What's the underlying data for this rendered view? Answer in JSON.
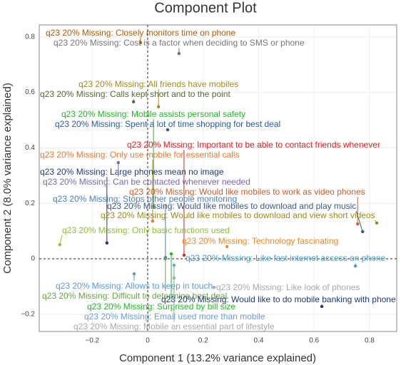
{
  "chart_data": {
    "type": "scatter",
    "title": "Component Plot",
    "x_label": "Component 1 (13.2% variance explained)",
    "y_label": "Component 2 (8.0% variance explained)",
    "xlim": [
      -0.391,
      0.898
    ],
    "ylim": [
      -0.262,
      0.843
    ],
    "xticks": [
      {
        "value": -0.2,
        "label": "−0.2"
      },
      0,
      0.2,
      0.4,
      0.6,
      0.8
    ],
    "yticks": [
      {
        "value": -0.2,
        "label": "−0.2"
      },
      0,
      0.2,
      0.4,
      0.6,
      0.8
    ],
    "grid": true,
    "series": [
      {
        "name": "q23 20% Missing: Closely monitors time on phone",
        "color": "#b35806",
        "x": [
          -0.026
        ],
        "values": [
          0.779
        ]
      },
      {
        "name": "q23 20% Missing: Cost is a factor when deciding to SMS or phone",
        "color": "#777777",
        "x": [
          0.113
        ],
        "values": [
          0.74
        ]
      },
      {
        "name": "q23 20% Missing: All friends have mobiles",
        "color": "#a08c1e",
        "x": [
          0.039
        ],
        "values": [
          0.548
        ]
      },
      {
        "name": "q23 20% Missing: Calls kept short and to the point",
        "color": "#556b2f",
        "x": [
          -0.051
        ],
        "values": [
          0.566
        ]
      },
      {
        "name": "q23 20% Missing: Mobile assists personal safety",
        "color": "#22b822",
        "x": [
          0.021
        ],
        "values": [
          0.188
        ]
      },
      {
        "name": "q23 20% Missing: Spent a lot of time shopping for best deal",
        "color": "#2a5a9a",
        "x": [
          0.072
        ],
        "values": [
          0.465
        ]
      },
      {
        "name": "q23 20% Missing: Important to be able to contact friends whenever",
        "color": "#e02020",
        "x": [
          0.131
        ],
        "values": [
          0.013
        ]
      },
      {
        "name": "q23 20% Missing: Only use mobile for essential calls",
        "color": "#e87a30",
        "x": [
          0.018
        ],
        "values": [
          0.136
        ]
      },
      {
        "name": "q23 20% Missing: Large phones mean no image",
        "color": "#1f3a78",
        "x": [
          -0.147
        ],
        "values": [
          0.057
        ]
      },
      {
        "name": "q23 20% Missing: Can be contacted whenever needed",
        "color": "#7b68ae",
        "x": [
          -0.106
        ],
        "values": [
          0.347
        ]
      },
      {
        "name": "q23 20% Missing: Would like mobiles to work as video phones",
        "color": "#c8602a",
        "x": [
          0.757
        ],
        "values": [
          0.126
        ]
      },
      {
        "name": "q23 20% Missing: Stops other people monitoring",
        "color": "#4a7fc1",
        "x": [
          0.064
        ],
        "values": [
          0.005
        ]
      },
      {
        "name": "q23 20% Missing: Would like mobiles to download and play music",
        "color": "#3a5a8a",
        "x": [
          0.775
        ],
        "values": [
          0.098
        ]
      },
      {
        "name": "q23 20% Missing: Would like mobiles to download and view short videos",
        "color": "#9b8a1a",
        "x": [
          0.826
        ],
        "values": [
          0.129
        ]
      },
      {
        "name": "q23 20% Missing: Only basic functions used",
        "color": "#8fbf3a",
        "x": [
          -0.317
        ],
        "values": [
          0.051
        ]
      },
      {
        "name": "q23 20% Missing: Technology fascinating",
        "color": "#e88a30",
        "x": [
          0.286
        ],
        "values": [
          0.044
        ]
      },
      {
        "name": "q23 20% Missing: Like fast internet access on phone",
        "color": "#4a9ac0",
        "x": [
          0.749
        ],
        "values": [
          -0.026
        ]
      },
      {
        "name": "q23 20% Missing: Allows to keep in touch",
        "color": "#5a9ad8",
        "x": [
          -0.049
        ],
        "values": [
          -0.054
        ]
      },
      {
        "name": "q23 20% Missing: Like look of phones",
        "color": "#aaaaaa",
        "x": [
          0.239
        ],
        "values": [
          -0.103
        ]
      },
      {
        "name": "q23 20% Missing: Difficult to determine best deal",
        "color": "#6aa04a",
        "x": [
          0.064
        ],
        "values": [
          0.0
        ]
      },
      {
        "name": "q23 20% Missing: Would like to do mobile banking with phone",
        "color": "#1f3a78",
        "x": [
          0.628
        ],
        "values": [
          -0.172
        ]
      },
      {
        "name": "q23 20% Missing: Surprised by bill size",
        "color": "#22b822",
        "x": [
          0.085
        ],
        "values": [
          0.018
        ]
      },
      {
        "name": "q23 20% Missing: Email used more than mobile",
        "color": "#6aa0d8",
        "x": [
          0.095
        ],
        "values": [
          -0.023
        ]
      },
      {
        "name": "q23 20% Missing: Mobile an essential part of lifestyle",
        "color": "#aaaaaa",
        "x": [
          0.095
        ],
        "values": [
          -0.069
        ]
      }
    ]
  }
}
